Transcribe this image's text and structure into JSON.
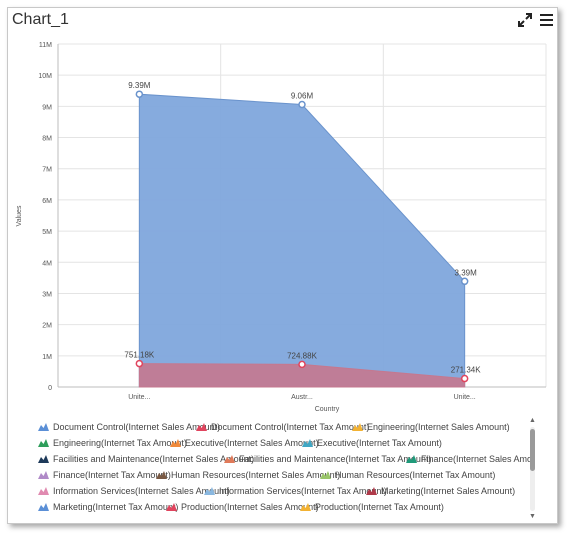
{
  "window": {
    "title": "Chart_1"
  },
  "toolbar": {
    "expand_icon": "expand-icon",
    "menu_icon": "menu-icon"
  },
  "chart_data": {
    "type": "area",
    "xlabel": "Country",
    "ylabel": "Values",
    "categories": [
      "Unite...",
      "Austr...",
      "Unite..."
    ],
    "ylim": [
      0,
      11000000
    ],
    "y_ticks": [
      "0",
      "1M",
      "2M",
      "3M",
      "4M",
      "5M",
      "6M",
      "7M",
      "8M",
      "9M",
      "10M",
      "11M"
    ],
    "grid": true,
    "legend_position": "bottom",
    "series": [
      {
        "name": "Document Control(Internet Sales Amount)",
        "values": [
          9390000,
          9060000,
          3390000
        ],
        "labels": [
          "9.39M",
          "9.06M",
          "3.39M"
        ],
        "color": "#7fa7dc",
        "line": "#6a93cc",
        "marker": "#6a93cc"
      },
      {
        "name": "Document Control(Internet Tax Amount)",
        "values": [
          751180,
          724880,
          271340
        ],
        "labels": [
          "751.18K",
          "724.88K",
          "271.34K"
        ],
        "color": "#c5788f",
        "line": "#c5788f",
        "marker": "#e0455e"
      }
    ]
  },
  "legend": {
    "rows": [
      [
        {
          "label": "Document Control(Internet Sales Amount)",
          "color": "#5b8fd6",
          "x": 0
        },
        {
          "label": "Document Control(Internet Tax Amount)",
          "color": "#e0455e",
          "x": 158
        },
        {
          "label": "Engineering(Internet Sales Amount)",
          "color": "#f2b233",
          "x": 314
        }
      ],
      [
        {
          "label": "Engineering(Internet Tax Amount)",
          "color": "#2e9e5b",
          "x": 0
        },
        {
          "label": "Executive(Internet Sales Amount)",
          "color": "#f08a3c",
          "x": 132
        },
        {
          "label": "Executive(Internet Tax Amount)",
          "color": "#41a7c4",
          "x": 264
        }
      ],
      [
        {
          "label": "Facilities and Maintenance(Internet Sales Amount)",
          "color": "#1e3a5a",
          "x": 0
        },
        {
          "label": "Facilities and Maintenance(Internet Tax Amount)",
          "color": "#e07a5a",
          "x": 186
        },
        {
          "label": "Finance(Internet Sales Amount)",
          "color": "#1f9a7a",
          "x": 368
        }
      ],
      [
        {
          "label": "Finance(Internet Tax Amount)",
          "color": "#b08ac8",
          "x": 0
        },
        {
          "label": "Human Resources(Internet Sales Amount)",
          "color": "#7a5a44",
          "x": 118
        },
        {
          "label": "Human Resources(Internet Tax Amount)",
          "color": "#9ac66a",
          "x": 282
        }
      ],
      [
        {
          "label": "Information Services(Internet Sales Amount)",
          "color": "#e08ab0",
          "x": 0
        },
        {
          "label": "Information Services(Internet Tax Amount)",
          "color": "#8ab8e0",
          "x": 166
        },
        {
          "label": "Marketing(Internet Sales Amount)",
          "color": "#b03a4a",
          "x": 328
        }
      ],
      [
        {
          "label": "Marketing(Internet Tax Amount)",
          "color": "#5b8fd6",
          "x": 0
        },
        {
          "label": "Production(Internet Sales Amount)",
          "color": "#e0455e",
          "x": 128
        },
        {
          "label": "Production(Internet Tax Amount)",
          "color": "#f2b233",
          "x": 262
        }
      ]
    ]
  }
}
